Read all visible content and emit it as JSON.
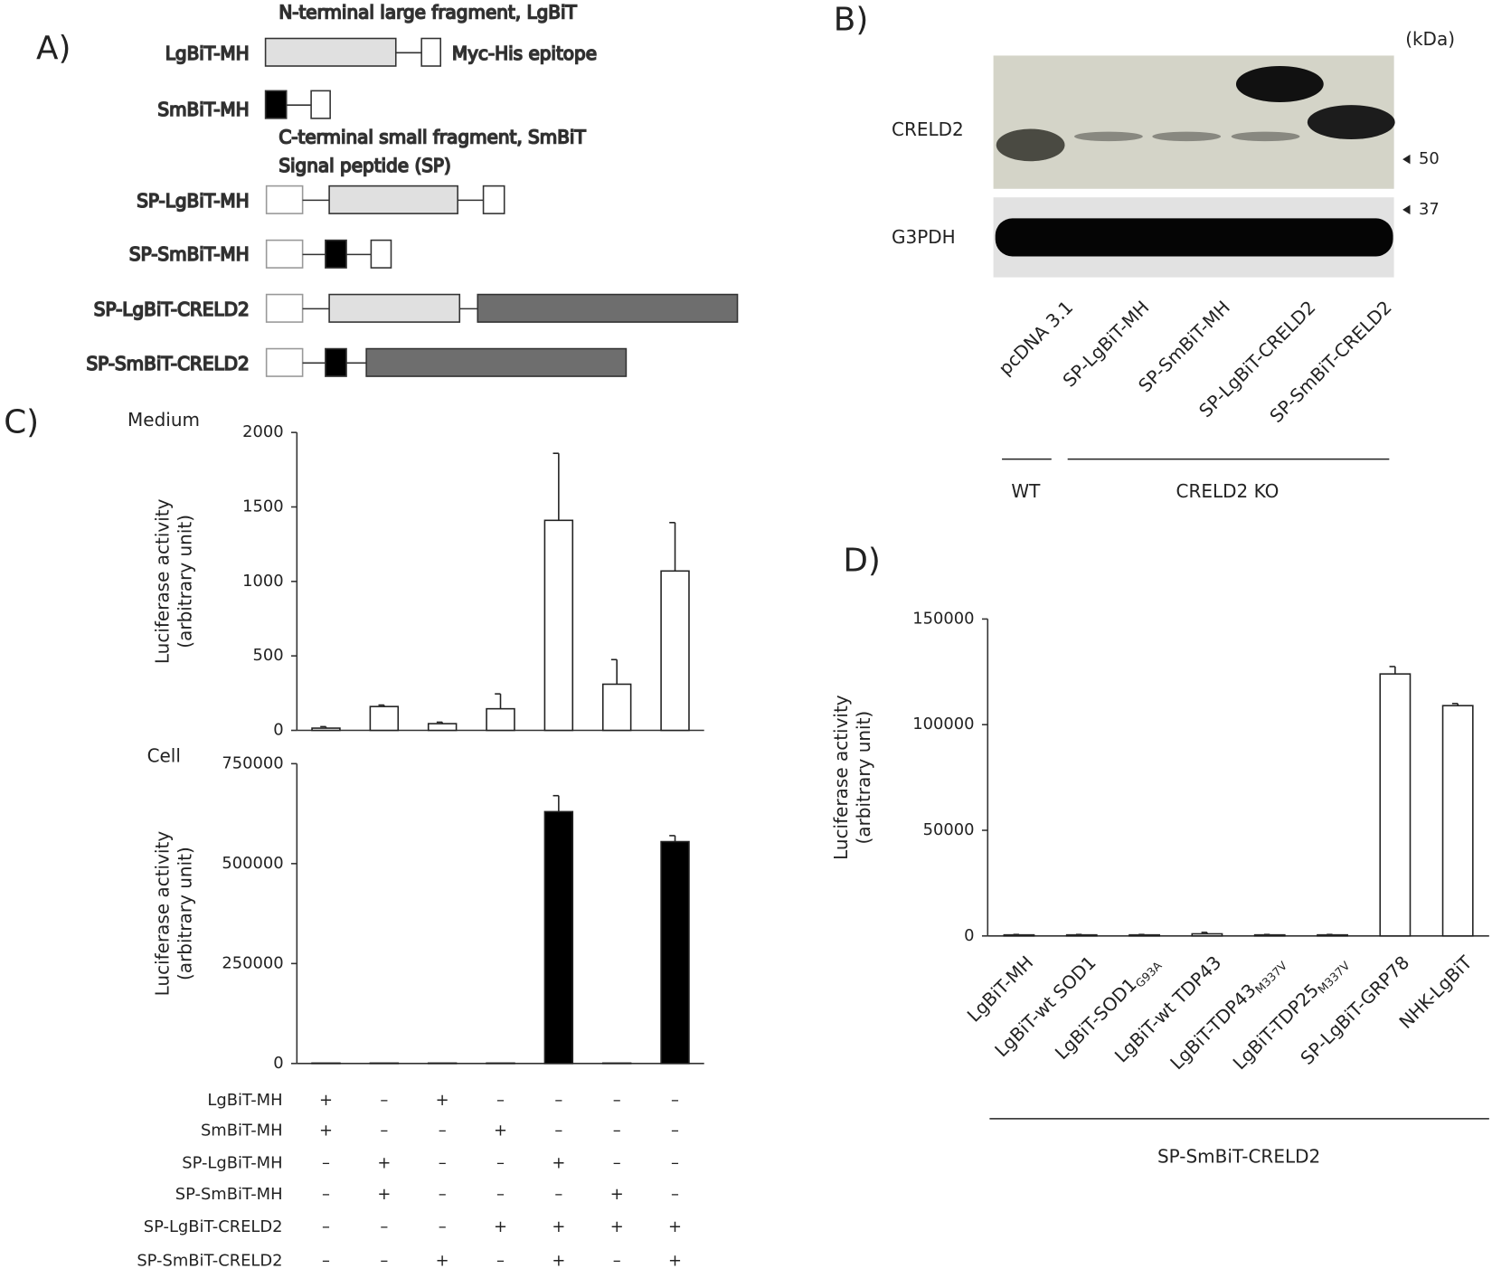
{
  "panel_labels": [
    "A)",
    "B)",
    "C)",
    "D)"
  ],
  "diagram": {
    "annotations": [
      "N-terminal large fragment, LgBiT",
      "Myc-His epitope",
      "C-terminal small fragment, SmBiT",
      "Signal peptide (SP)"
    ],
    "constructs": [
      "LgBiT-MH",
      "SmBiT-MH",
      "SP-LgBiT-MH",
      "SP-SmBiT-MH",
      "SP-LgBiT-CRELD2",
      "SP-SmBiT-CRELD2"
    ]
  },
  "blot": {
    "unit": "(kDa)",
    "rows": [
      "CRELD2",
      "G3PDH"
    ],
    "markers": [
      "50",
      "37"
    ],
    "lanes": [
      "pcDNA 3.1",
      "SP-LgBiT-MH",
      "SP-SmBiT-MH",
      "SP-LgBiT-CRELD2",
      "SP-SmBiT-CRELD2"
    ],
    "groups": [
      "WT",
      "CRELD2 KO"
    ]
  },
  "chart_data": [
    {
      "type": "bar",
      "title": "Medium",
      "y_label": [
        "Luciferase activity",
        "(arbitrary unit)"
      ],
      "values": [
        15,
        160,
        45,
        145,
        1410,
        310,
        1070
      ],
      "errors": [
        10,
        10,
        10,
        100,
        450,
        165,
        325
      ],
      "color": "#ffffff",
      "ylim": [
        0,
        2000
      ],
      "yticks": [
        0,
        500,
        1000,
        1500,
        2000
      ]
    },
    {
      "type": "bar",
      "title": "Cell",
      "y_label": [
        "Luciferase activity",
        "(arbitrary unit)"
      ],
      "values": [
        1000,
        1000,
        1000,
        1000,
        630000,
        1000,
        555000
      ],
      "errors": [
        0,
        0,
        0,
        0,
        40000,
        0,
        15000
      ],
      "color": "#000000",
      "ylim": [
        0,
        750000
      ],
      "yticks": [
        0,
        250000,
        500000,
        750000
      ]
    },
    {
      "type": "bar",
      "y_label": [
        "Luciferase activity",
        "(arbitrary unit)"
      ],
      "categories": [
        "LgBiT-MH",
        "LgBiT-wt SOD1",
        "LgBiT-SOD1",
        "LgBiT-wt TDP43",
        "LgBiT-TDP43",
        "LgBiT-TDP25",
        "SP-LgBiT-GRP78",
        "NHK-LgBiT"
      ],
      "category_subscripts": [
        null,
        null,
        "G93A",
        null,
        "M337V",
        "M337V",
        null,
        null
      ],
      "group_label": "SP-SmBiT-CRELD2",
      "values": [
        500,
        500,
        500,
        1000,
        500,
        500,
        124000,
        109000
      ],
      "errors": [
        200,
        200,
        200,
        700,
        200,
        200,
        3500,
        1000
      ],
      "color": "#ffffff",
      "ylim": [
        0,
        150000
      ],
      "yticks": [
        0,
        50000,
        100000,
        150000
      ]
    }
  ],
  "table": {
    "rows": [
      {
        "label": "LgBiT-MH",
        "signs": [
          "+",
          "–",
          "+",
          "–",
          "–",
          "–",
          "–"
        ]
      },
      {
        "label": "SmBiT-MH",
        "signs": [
          "+",
          "–",
          "–",
          "+",
          "–",
          "–",
          "–"
        ]
      },
      {
        "label": "SP-LgBiT-MH",
        "signs": [
          "–",
          "+",
          "–",
          "–",
          "+",
          "–",
          "–"
        ]
      },
      {
        "label": "SP-SmBiT-MH",
        "signs": [
          "–",
          "+",
          "–",
          "–",
          "–",
          "+",
          "–"
        ]
      },
      {
        "label": "SP-LgBiT-CRELD2",
        "signs": [
          "–",
          "–",
          "–",
          "+",
          "+",
          "+",
          "+"
        ]
      },
      {
        "label": "SP-SmBiT-CRELD2",
        "signs": [
          "–",
          "–",
          "+",
          "–",
          "+",
          "–",
          "+"
        ]
      }
    ]
  }
}
